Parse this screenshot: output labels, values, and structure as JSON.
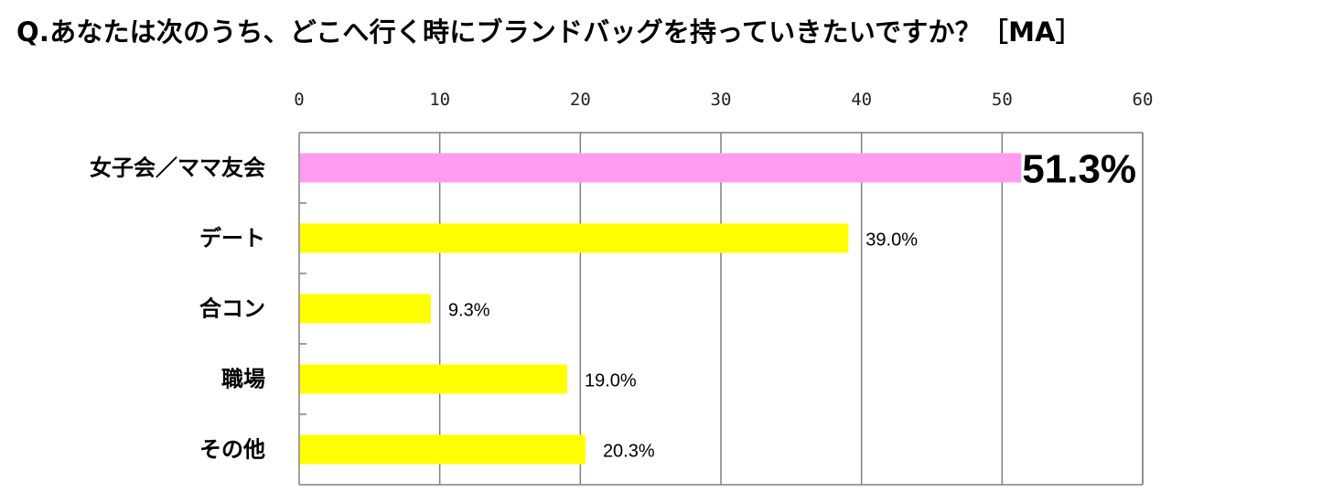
{
  "title": "Q.あなたは次のうち、どこへ行く時にブランドバッグを持っていきたいですか？［MA］",
  "chart_data": {
    "type": "bar",
    "orientation": "horizontal",
    "categories": [
      "女子会／ママ友会",
      "デート",
      "合コン",
      "職場",
      "その他"
    ],
    "values": [
      51.3,
      39.0,
      9.3,
      19.0,
      20.3
    ],
    "value_labels": [
      "51.3%",
      "39.0%",
      "9.3%",
      "19.0%",
      "20.3%"
    ],
    "xlim": [
      0,
      60
    ],
    "xticks": [
      "0",
      "10",
      "20",
      "30",
      "40",
      "50",
      "60"
    ],
    "grid": true,
    "axis_position": "top",
    "highlight_index": 0,
    "colors": {
      "highlight": "#ff9cf0",
      "default": "#ffff00",
      "grid": "#808080",
      "axis": "#808080"
    }
  }
}
